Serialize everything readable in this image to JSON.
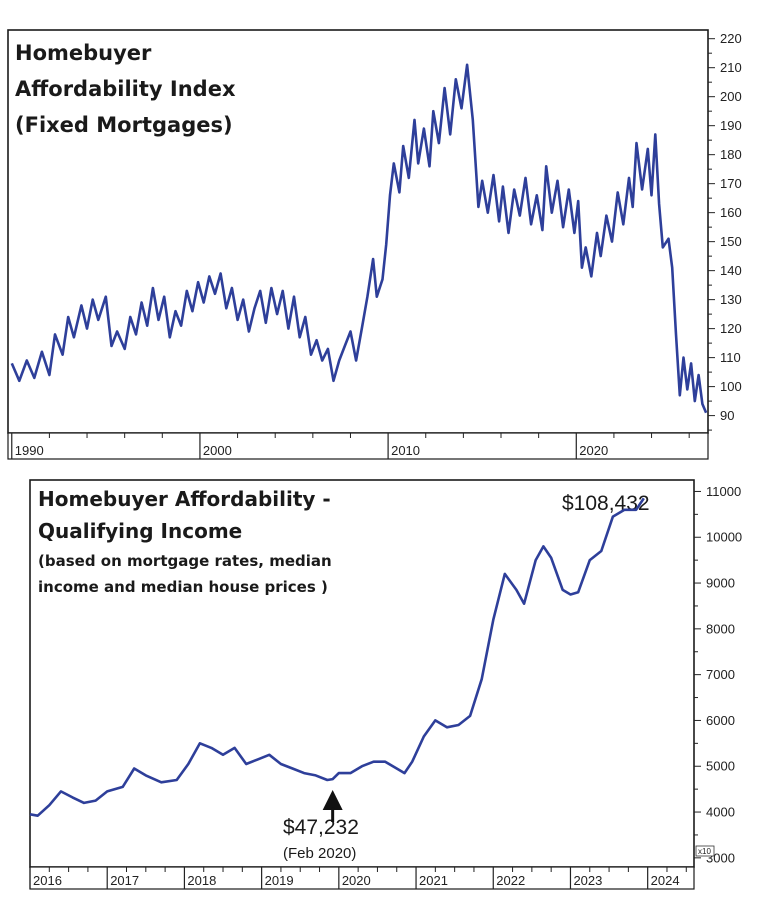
{
  "chart_data": [
    {
      "type": "line",
      "title_lines": [
        "Homebuyer",
        "Affordability Index",
        "(Fixed Mortgages)"
      ],
      "ylim": [
        84,
        223
      ],
      "xlim": [
        1989.8,
        2027
      ],
      "yticks": [
        90,
        100,
        110,
        120,
        130,
        140,
        150,
        160,
        170,
        180,
        190,
        200,
        210,
        220
      ],
      "xticks": [
        {
          "label": "1990",
          "x": 1990
        },
        {
          "label": "2000",
          "x": 2000
        },
        {
          "label": "2010",
          "x": 2010
        },
        {
          "label": "2020",
          "x": 2020
        }
      ],
      "grid": false,
      "line_color": "#2e3f9a",
      "series": [
        {
          "values": [
            [
              1990.0,
              108
            ],
            [
              1990.4,
              102
            ],
            [
              1990.8,
              109
            ],
            [
              1991.2,
              103
            ],
            [
              1991.6,
              112
            ],
            [
              1992.0,
              104
            ],
            [
              1992.3,
              118
            ],
            [
              1992.7,
              111
            ],
            [
              1993.0,
              124
            ],
            [
              1993.3,
              117
            ],
            [
              1993.7,
              128
            ],
            [
              1994.0,
              120
            ],
            [
              1994.3,
              130
            ],
            [
              1994.6,
              123
            ],
            [
              1995.0,
              131
            ],
            [
              1995.3,
              114
            ],
            [
              1995.6,
              119
            ],
            [
              1996.0,
              113
            ],
            [
              1996.3,
              124
            ],
            [
              1996.6,
              118
            ],
            [
              1996.9,
              129
            ],
            [
              1997.2,
              121
            ],
            [
              1997.5,
              134
            ],
            [
              1997.8,
              123
            ],
            [
              1998.1,
              131
            ],
            [
              1998.4,
              117
            ],
            [
              1998.7,
              126
            ],
            [
              1999.0,
              121
            ],
            [
              1999.3,
              133
            ],
            [
              1999.6,
              126
            ],
            [
              1999.9,
              136
            ],
            [
              2000.2,
              129
            ],
            [
              2000.5,
              138
            ],
            [
              2000.8,
              132
            ],
            [
              2001.1,
              139
            ],
            [
              2001.4,
              127
            ],
            [
              2001.7,
              134
            ],
            [
              2002.0,
              123
            ],
            [
              2002.3,
              130
            ],
            [
              2002.6,
              119
            ],
            [
              2002.9,
              127
            ],
            [
              2003.2,
              133
            ],
            [
              2003.5,
              122
            ],
            [
              2003.8,
              134
            ],
            [
              2004.1,
              125
            ],
            [
              2004.4,
              133
            ],
            [
              2004.7,
              120
            ],
            [
              2005.0,
              131
            ],
            [
              2005.3,
              117
            ],
            [
              2005.6,
              124
            ],
            [
              2005.9,
              111
            ],
            [
              2006.2,
              116
            ],
            [
              2006.5,
              109
            ],
            [
              2006.8,
              113
            ],
            [
              2007.1,
              102
            ],
            [
              2007.4,
              109
            ],
            [
              2007.7,
              114
            ],
            [
              2008.0,
              119
            ],
            [
              2008.3,
              109
            ],
            [
              2008.6,
              120
            ],
            [
              2008.9,
              131
            ],
            [
              2009.2,
              144
            ],
            [
              2009.4,
              131
            ],
            [
              2009.7,
              137
            ],
            [
              2009.9,
              149
            ],
            [
              2010.1,
              166
            ],
            [
              2010.3,
              177
            ],
            [
              2010.6,
              167
            ],
            [
              2010.8,
              183
            ],
            [
              2011.1,
              172
            ],
            [
              2011.4,
              192
            ],
            [
              2011.6,
              177
            ],
            [
              2011.9,
              189
            ],
            [
              2012.2,
              176
            ],
            [
              2012.4,
              195
            ],
            [
              2012.7,
              184
            ],
            [
              2013.0,
              203
            ],
            [
              2013.3,
              187
            ],
            [
              2013.6,
              206
            ],
            [
              2013.9,
              196
            ],
            [
              2014.2,
              211
            ],
            [
              2014.5,
              192
            ],
            [
              2014.8,
              162
            ],
            [
              2015.0,
              171
            ],
            [
              2015.3,
              160
            ],
            [
              2015.6,
              173
            ],
            [
              2015.9,
              157
            ],
            [
              2016.1,
              169
            ],
            [
              2016.4,
              153
            ],
            [
              2016.7,
              168
            ],
            [
              2017.0,
              159
            ],
            [
              2017.3,
              172
            ],
            [
              2017.6,
              156
            ],
            [
              2017.9,
              166
            ],
            [
              2018.2,
              154
            ],
            [
              2018.4,
              176
            ],
            [
              2018.7,
              160
            ],
            [
              2019.0,
              171
            ],
            [
              2019.3,
              155
            ],
            [
              2019.6,
              168
            ],
            [
              2019.9,
              153
            ],
            [
              2020.1,
              164
            ],
            [
              2020.3,
              141
            ],
            [
              2020.5,
              148
            ],
            [
              2020.8,
              138
            ],
            [
              2021.1,
              153
            ],
            [
              2021.3,
              145
            ],
            [
              2021.6,
              159
            ],
            [
              2021.9,
              150
            ],
            [
              2022.2,
              167
            ],
            [
              2022.5,
              156
            ],
            [
              2022.8,
              172
            ],
            [
              2023.0,
              162
            ],
            [
              2023.2,
              184
            ],
            [
              2023.5,
              168
            ],
            [
              2023.8,
              182
            ],
            [
              2024.0,
              166
            ],
            [
              2024.2,
              187
            ],
            [
              2024.4,
              163
            ],
            [
              2024.6,
              148
            ],
            [
              2024.9,
              151
            ],
            [
              2025.1,
              141
            ],
            [
              2025.3,
              118
            ],
            [
              2025.5,
              97
            ],
            [
              2025.7,
              110
            ],
            [
              2025.9,
              99
            ],
            [
              2026.1,
              108
            ],
            [
              2026.3,
              95
            ],
            [
              2026.5,
              104
            ],
            [
              2026.7,
              94
            ],
            [
              2026.9,
              91
            ]
          ]
        }
      ]
    },
    {
      "type": "line",
      "title_lines": [
        "Homebuyer Affordability -",
        "Qualifying Income"
      ],
      "subtitle_lines": [
        "(based on mortgage rates, median",
        "income and median house prices )"
      ],
      "ylim": [
        2800,
        11250
      ],
      "xlim": [
        2016,
        2024.6
      ],
      "yticks": [
        3000,
        4000,
        5000,
        6000,
        7000,
        8000,
        9000,
        10000,
        11000
      ],
      "xticks": [
        {
          "label": "2016",
          "x": 2016
        },
        {
          "label": "2017",
          "x": 2017
        },
        {
          "label": "2018",
          "x": 2018
        },
        {
          "label": "2019",
          "x": 2019
        },
        {
          "label": "2020",
          "x": 2020
        },
        {
          "label": "2021",
          "x": 2021
        },
        {
          "label": "2022",
          "x": 2022
        },
        {
          "label": "2023",
          "x": 2023
        },
        {
          "label": "2024",
          "x": 2024
        }
      ],
      "axis_multiplier": "x10",
      "grid": false,
      "line_color": "#2e3f9a",
      "annotations": {
        "end_value": "$108,432",
        "low_value": "$47,232",
        "low_date": "(Feb 2020)"
      },
      "arrow_target": {
        "x": 2019.92,
        "y": 4700
      },
      "series": [
        {
          "values": [
            [
              2016.0,
              3950
            ],
            [
              2016.1,
              3920
            ],
            [
              2016.25,
              4150
            ],
            [
              2016.4,
              4450
            ],
            [
              2016.55,
              4320
            ],
            [
              2016.7,
              4200
            ],
            [
              2016.85,
              4250
            ],
            [
              2017.0,
              4450
            ],
            [
              2017.2,
              4550
            ],
            [
              2017.35,
              4950
            ],
            [
              2017.5,
              4800
            ],
            [
              2017.7,
              4650
            ],
            [
              2017.9,
              4700
            ],
            [
              2018.05,
              5050
            ],
            [
              2018.2,
              5500
            ],
            [
              2018.35,
              5400
            ],
            [
              2018.5,
              5250
            ],
            [
              2018.65,
              5400
            ],
            [
              2018.8,
              5050
            ],
            [
              2018.95,
              5150
            ],
            [
              2019.1,
              5250
            ],
            [
              2019.25,
              5050
            ],
            [
              2019.4,
              4950
            ],
            [
              2019.55,
              4850
            ],
            [
              2019.7,
              4800
            ],
            [
              2019.85,
              4700
            ],
            [
              2019.92,
              4720
            ],
            [
              2020.0,
              4850
            ],
            [
              2020.15,
              4850
            ],
            [
              2020.3,
              5000
            ],
            [
              2020.45,
              5100
            ],
            [
              2020.6,
              5100
            ],
            [
              2020.75,
              4950
            ],
            [
              2020.85,
              4850
            ],
            [
              2020.95,
              5100
            ],
            [
              2021.1,
              5650
            ],
            [
              2021.25,
              6000
            ],
            [
              2021.4,
              5850
            ],
            [
              2021.55,
              5900
            ],
            [
              2021.7,
              6100
            ],
            [
              2021.85,
              6900
            ],
            [
              2022.0,
              8200
            ],
            [
              2022.15,
              9200
            ],
            [
              2022.3,
              8850
            ],
            [
              2022.4,
              8550
            ],
            [
              2022.55,
              9500
            ],
            [
              2022.65,
              9800
            ],
            [
              2022.75,
              9550
            ],
            [
              2022.9,
              8850
            ],
            [
              2023.0,
              8750
            ],
            [
              2023.1,
              8800
            ],
            [
              2023.25,
              9500
            ],
            [
              2023.4,
              9700
            ],
            [
              2023.55,
              10450
            ],
            [
              2023.7,
              10600
            ],
            [
              2023.85,
              10600
            ],
            [
              2023.95,
              10850
            ]
          ]
        }
      ]
    }
  ]
}
